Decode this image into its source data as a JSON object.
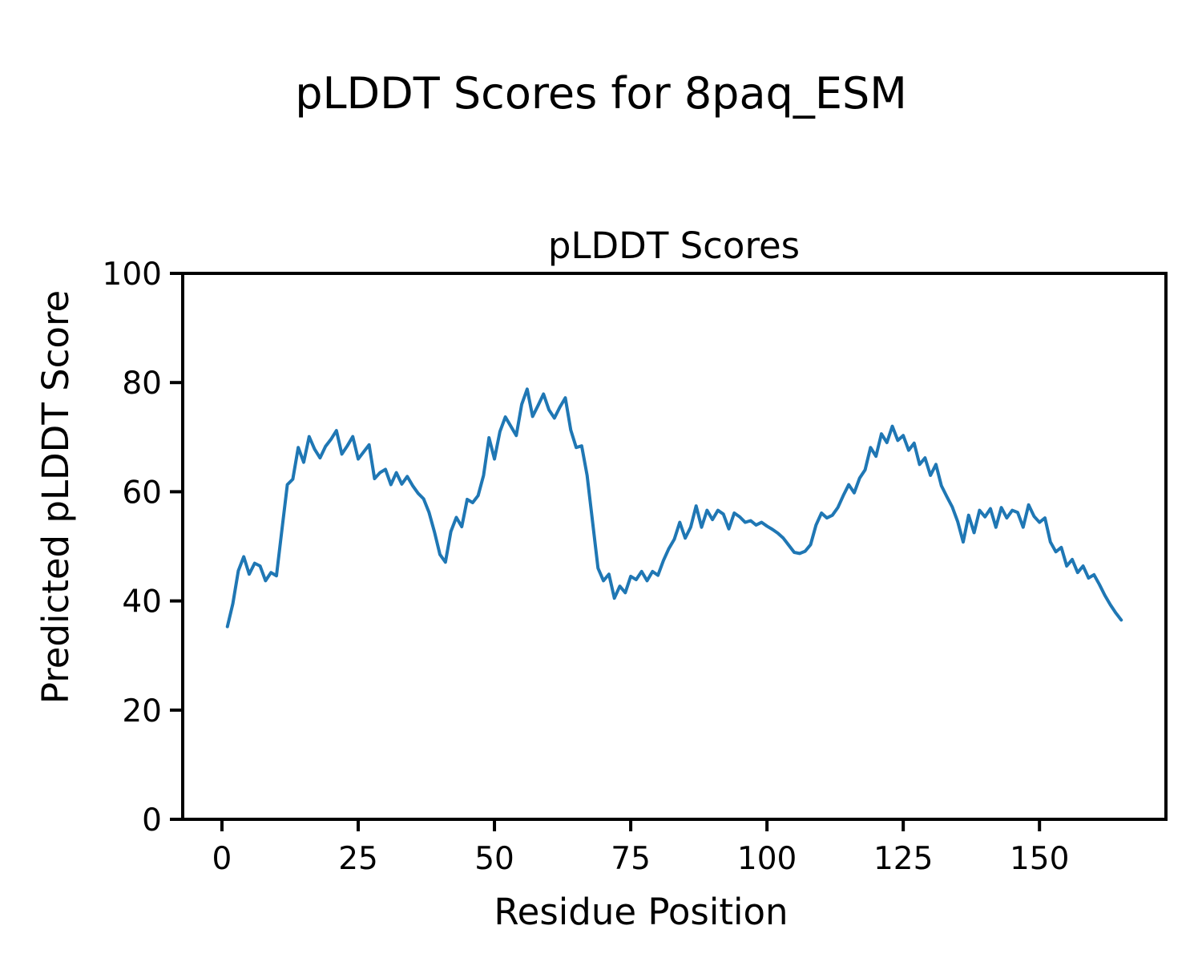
{
  "figure": {
    "suptitle": "pLDDT Scores for 8paq_ESM",
    "background_color": "#ffffff",
    "text_color": "#000000"
  },
  "chart_data": {
    "type": "line",
    "title": "pLDDT Scores",
    "xlabel": "Residue Position",
    "ylabel": "Predicted pLDDT Score",
    "grid": false,
    "legend": null,
    "xlim": [
      -7.2,
      173.2
    ],
    "ylim": [
      0,
      100
    ],
    "xticks": [
      0,
      25,
      50,
      75,
      100,
      125,
      150
    ],
    "yticks": [
      0,
      20,
      40,
      60,
      80,
      100
    ],
    "series": [
      {
        "name": "pLDDT",
        "color": "#1f77b4",
        "x": [
          1,
          2,
          3,
          4,
          5,
          6,
          7,
          8,
          9,
          10,
          11,
          12,
          13,
          14,
          15,
          16,
          17,
          18,
          19,
          20,
          21,
          22,
          23,
          24,
          25,
          26,
          27,
          28,
          29,
          30,
          31,
          32,
          33,
          34,
          35,
          36,
          37,
          38,
          39,
          40,
          41,
          42,
          43,
          44,
          45,
          46,
          47,
          48,
          49,
          50,
          51,
          52,
          53,
          54,
          55,
          56,
          57,
          58,
          59,
          60,
          61,
          62,
          63,
          64,
          65,
          66,
          67,
          68,
          69,
          70,
          71,
          72,
          73,
          74,
          75,
          76,
          77,
          78,
          79,
          80,
          81,
          82,
          83,
          84,
          85,
          86,
          87,
          88,
          89,
          90,
          91,
          92,
          93,
          94,
          95,
          96,
          97,
          98,
          99,
          100,
          101,
          102,
          103,
          104,
          105,
          106,
          107,
          108,
          109,
          110,
          111,
          112,
          113,
          114,
          115,
          116,
          117,
          118,
          119,
          120,
          121,
          122,
          123,
          124,
          125,
          126,
          127,
          128,
          129,
          130,
          131,
          132,
          133,
          134,
          135,
          136,
          137,
          138,
          139,
          140,
          141,
          142,
          143,
          144,
          145,
          146,
          147,
          148,
          149,
          150,
          151,
          152,
          153,
          154,
          155,
          156,
          157,
          158,
          159,
          160,
          161,
          162,
          163,
          164,
          165
        ],
        "values": [
          35.3,
          39.5,
          45.5,
          48.1,
          44.9,
          46.9,
          46.4,
          43.7,
          45.2,
          44.6,
          53.0,
          61.3,
          62.3,
          68.1,
          65.4,
          70.1,
          67.8,
          66.2,
          68.3,
          69.6,
          71.2,
          66.9,
          68.4,
          70.1,
          66.0,
          67.3,
          68.6,
          62.4,
          63.5,
          64.1,
          61.3,
          63.5,
          61.4,
          62.8,
          61.1,
          59.7,
          58.7,
          56.2,
          52.6,
          48.5,
          47.1,
          52.7,
          55.3,
          53.6,
          58.6,
          58.0,
          59.3,
          63.0,
          69.9,
          66.0,
          71.0,
          73.7,
          72.0,
          70.3,
          76.0,
          78.8,
          73.8,
          75.8,
          77.9,
          75.0,
          73.5,
          75.5,
          77.2,
          71.3,
          68.1,
          68.4,
          63.0,
          54.5,
          46.0,
          43.7,
          44.9,
          40.5,
          42.7,
          41.5,
          44.5,
          43.9,
          45.4,
          43.7,
          45.4,
          44.7,
          47.4,
          49.6,
          51.3,
          54.4,
          51.5,
          53.5,
          57.4,
          53.5,
          56.6,
          54.9,
          56.6,
          55.9,
          53.2,
          56.1,
          55.4,
          54.4,
          54.7,
          53.9,
          54.4,
          53.7,
          53.1,
          52.4,
          51.5,
          50.2,
          48.9,
          48.7,
          49.1,
          50.3,
          53.9,
          56.1,
          55.2,
          55.7,
          57.1,
          59.3,
          61.3,
          59.8,
          62.5,
          64.0,
          68.1,
          66.5,
          70.6,
          69.0,
          72.0,
          69.4,
          70.3,
          67.6,
          68.9,
          65.0,
          66.2,
          63.0,
          65.0,
          61.1,
          59.1,
          57.2,
          54.5,
          50.8,
          55.7,
          52.5,
          56.6,
          55.4,
          56.9,
          53.5,
          57.1,
          55.2,
          56.6,
          56.2,
          53.5,
          57.6,
          55.5,
          54.4,
          55.2,
          50.8,
          49.0,
          49.8,
          46.4,
          47.6,
          45.2,
          46.4,
          44.2,
          44.8,
          43.0,
          41.0,
          39.3,
          37.8,
          36.5
        ]
      }
    ]
  }
}
